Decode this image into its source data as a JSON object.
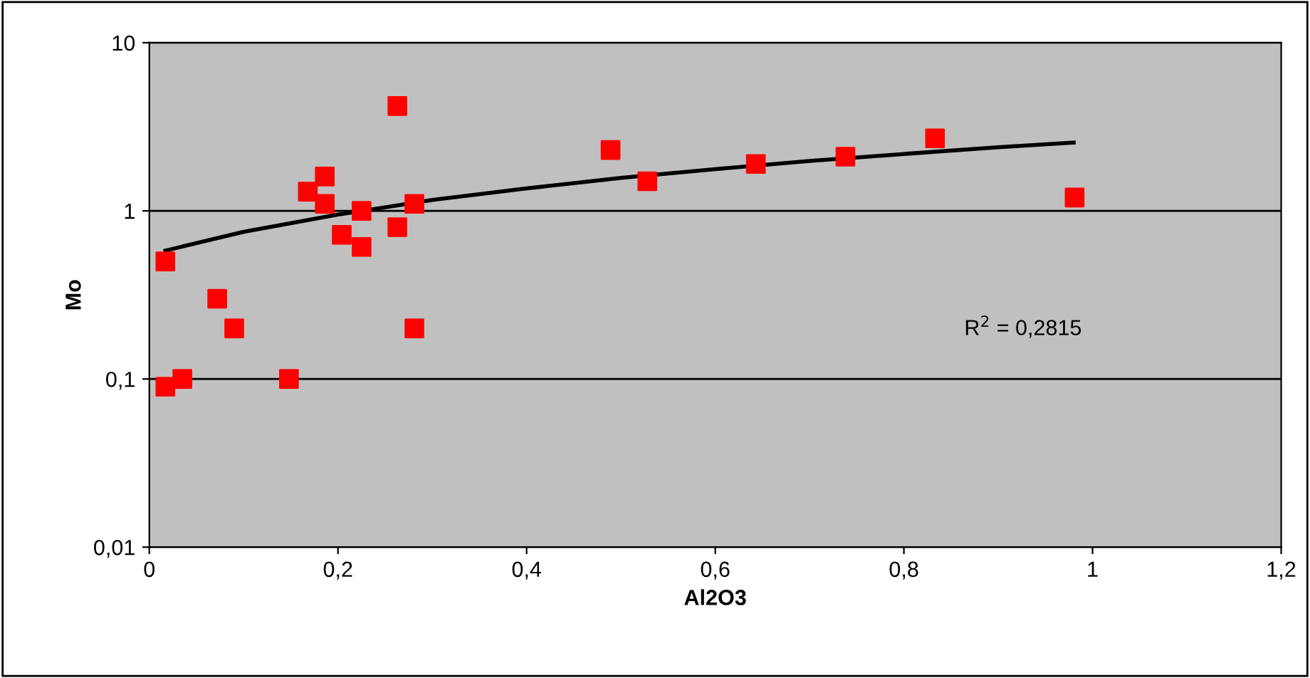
{
  "chart_data": {
    "type": "scatter",
    "xlabel": "Al2O3",
    "ylabel": "Mo",
    "log": "y",
    "grid": "y",
    "legend": false,
    "xlim": [
      0,
      1.2
    ],
    "xticks": [
      0,
      {
        "value": 0.2,
        "label": "0,2"
      },
      {
        "value": 0.4,
        "label": "0,4"
      },
      {
        "value": 0.6,
        "label": "0,6"
      },
      {
        "value": 0.8,
        "label": "0,8"
      },
      1,
      {
        "value": 1.2,
        "label": "1,2"
      }
    ],
    "ylim": [
      0.01,
      10
    ],
    "yticks": [
      {
        "value": 0.01,
        "label": "0,01"
      },
      {
        "value": 0.1,
        "label": "0,1"
      },
      1,
      10
    ],
    "annotations": [
      "R$^{2}$ = 0,2815"
    ],
    "series": [
      {
        "marker": "square",
        "color": "#ff0000",
        "x": [
          0.017,
          0.017,
          0.035,
          0.072,
          0.09,
          0.148,
          0.168,
          0.186,
          0.186,
          0.204,
          0.225,
          0.225,
          0.263,
          0.263,
          0.281,
          0.281,
          0.489,
          0.528,
          0.643,
          0.738,
          0.833,
          0.981
        ],
        "values": [
          0.09,
          0.5,
          0.1,
          0.3,
          0.2,
          0.1,
          1.3,
          1.6,
          1.1,
          0.72,
          1.0,
          0.61,
          4.2,
          0.8,
          1.1,
          0.2,
          2.3,
          1.5,
          1.9,
          2.1,
          2.7,
          1.2
        ]
      },
      {
        "type": "line",
        "color": "#000000",
        "x": [
          0.017,
          0.1,
          0.2,
          0.3,
          0.4,
          0.5,
          0.6,
          0.7,
          0.8,
          0.9,
          0.98
        ],
        "values": [
          0.58,
          0.75,
          0.95,
          1.16,
          1.36,
          1.57,
          1.77,
          1.98,
          2.18,
          2.39,
          2.55
        ]
      }
    ]
  }
}
